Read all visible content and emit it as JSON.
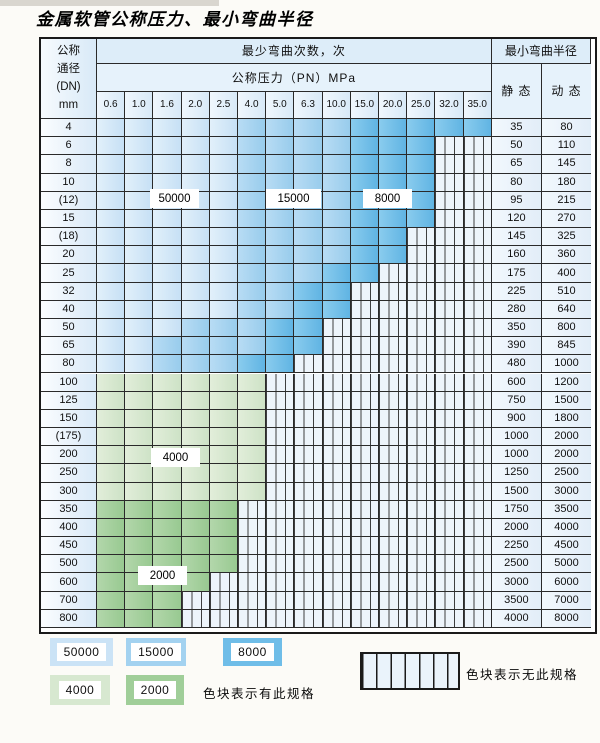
{
  "title": "金属软管公称压力、最小弯曲半径",
  "table": {
    "dn_header_lines": [
      "公称",
      "通径",
      "(DN)",
      "mm"
    ],
    "bend_cycles_header": "最少弯曲次数，次",
    "pressure_header": "公称压力（PN）MPa",
    "min_radius_header": "最小弯曲半径",
    "static_header": "静 态",
    "dynamic_header": "动 态",
    "pressure_columns": [
      "0.6",
      "1.0",
      "1.6",
      "2.0",
      "2.5",
      "4.0",
      "5.0",
      "6.3",
      "10.0",
      "15.0",
      "20.0",
      "25.0",
      "32.0",
      "35.0"
    ],
    "cycle_labels": [
      {
        "text": "50000"
      },
      {
        "text": "15000"
      },
      {
        "text": "8000"
      },
      {
        "text": "4000"
      },
      {
        "text": "2000"
      }
    ],
    "rows": [
      {
        "dn": "4",
        "group": "blue",
        "available_count": 14,
        "medium_from": 5,
        "dark_from": 9,
        "static": "35",
        "dynamic": "80"
      },
      {
        "dn": "6",
        "group": "blue",
        "available_count": 12,
        "medium_from": 5,
        "dark_from": 9,
        "static": "50",
        "dynamic": "110"
      },
      {
        "dn": "8",
        "group": "blue",
        "available_count": 12,
        "medium_from": 5,
        "dark_from": 9,
        "static": "65",
        "dynamic": "145"
      },
      {
        "dn": "10",
        "group": "blue",
        "available_count": 12,
        "medium_from": 5,
        "dark_from": 9,
        "static": "80",
        "dynamic": "180"
      },
      {
        "dn": "(12)",
        "group": "blue",
        "available_count": 12,
        "medium_from": 5,
        "dark_from": 9,
        "static": "95",
        "dynamic": "215"
      },
      {
        "dn": "15",
        "group": "blue",
        "available_count": 12,
        "medium_from": 5,
        "dark_from": 9,
        "static": "120",
        "dynamic": "270"
      },
      {
        "dn": "(18)",
        "group": "blue",
        "available_count": 11,
        "medium_from": 5,
        "dark_from": 9,
        "static": "145",
        "dynamic": "325"
      },
      {
        "dn": "20",
        "group": "blue",
        "available_count": 11,
        "medium_from": 5,
        "dark_from": 9,
        "static": "160",
        "dynamic": "360"
      },
      {
        "dn": "25",
        "group": "blue",
        "available_count": 10,
        "medium_from": 5,
        "dark_from": 8,
        "static": "175",
        "dynamic": "400"
      },
      {
        "dn": "32",
        "group": "blue",
        "available_count": 9,
        "medium_from": 5,
        "dark_from": 7,
        "static": "225",
        "dynamic": "510"
      },
      {
        "dn": "40",
        "group": "blue",
        "available_count": 9,
        "medium_from": 5,
        "dark_from": 7,
        "static": "280",
        "dynamic": "640"
      },
      {
        "dn": "50",
        "group": "blue",
        "available_count": 8,
        "medium_from": 3,
        "dark_from": 6,
        "static": "350",
        "dynamic": "800"
      },
      {
        "dn": "65",
        "group": "blue",
        "available_count": 8,
        "medium_from": 2,
        "dark_from": 6,
        "static": "390",
        "dynamic": "845"
      },
      {
        "dn": "80",
        "group": "blue",
        "available_count": 7,
        "medium_from": 2,
        "dark_from": 5,
        "static": "480",
        "dynamic": "1000"
      },
      {
        "dn": "100",
        "group": "green-4000",
        "available_count": 6,
        "static": "600",
        "dynamic": "1200"
      },
      {
        "dn": "125",
        "group": "green-4000",
        "available_count": 6,
        "static": "750",
        "dynamic": "1500"
      },
      {
        "dn": "150",
        "group": "green-4000",
        "available_count": 6,
        "static": "900",
        "dynamic": "1800"
      },
      {
        "dn": "(175)",
        "group": "green-4000",
        "available_count": 6,
        "static": "1000",
        "dynamic": "2000"
      },
      {
        "dn": "200",
        "group": "green-4000",
        "available_count": 6,
        "static": "1000",
        "dynamic": "2000"
      },
      {
        "dn": "250",
        "group": "green-4000",
        "available_count": 6,
        "static": "1250",
        "dynamic": "2500"
      },
      {
        "dn": "300",
        "group": "green-4000",
        "available_count": 6,
        "static": "1500",
        "dynamic": "3000"
      },
      {
        "dn": "350",
        "group": "green-2000",
        "available_count": 5,
        "static": "1750",
        "dynamic": "3500"
      },
      {
        "dn": "400",
        "group": "green-2000",
        "available_count": 5,
        "static": "2000",
        "dynamic": "4000"
      },
      {
        "dn": "450",
        "group": "green-2000",
        "available_count": 5,
        "static": "2250",
        "dynamic": "4500"
      },
      {
        "dn": "500",
        "group": "green-2000",
        "available_count": 5,
        "static": "2500",
        "dynamic": "5000"
      },
      {
        "dn": "600",
        "group": "green-2000",
        "available_count": 4,
        "static": "3000",
        "dynamic": "6000"
      },
      {
        "dn": "700",
        "group": "green-2000",
        "available_count": 3,
        "static": "3500",
        "dynamic": "7000"
      },
      {
        "dn": "800",
        "group": "green-2000",
        "available_count": 3,
        "static": "4000",
        "dynamic": "8000"
      }
    ]
  },
  "legend": {
    "items": [
      {
        "label": "50000",
        "color": "#cbe3f6"
      },
      {
        "label": "15000",
        "color": "#a3d2f0"
      },
      {
        "label": "8000",
        "color": "#6fbde8"
      },
      {
        "label": "4000",
        "color": "#d7e8d0"
      },
      {
        "label": "2000",
        "color": "#a0ce99"
      }
    ],
    "available_note": "色块表示有此规格",
    "unavailable_note": "色块表示无此规格"
  },
  "colors": {
    "cycles_50000": "#cbe3f6",
    "cycles_15000": "#a3d2f0",
    "cycles_8000": "#6fbde8",
    "cycles_4000": "#d7e8d0",
    "cycles_2000": "#a0ce99",
    "grid_line": "#2a2a2a",
    "hatch_background": "#edf4fb"
  }
}
